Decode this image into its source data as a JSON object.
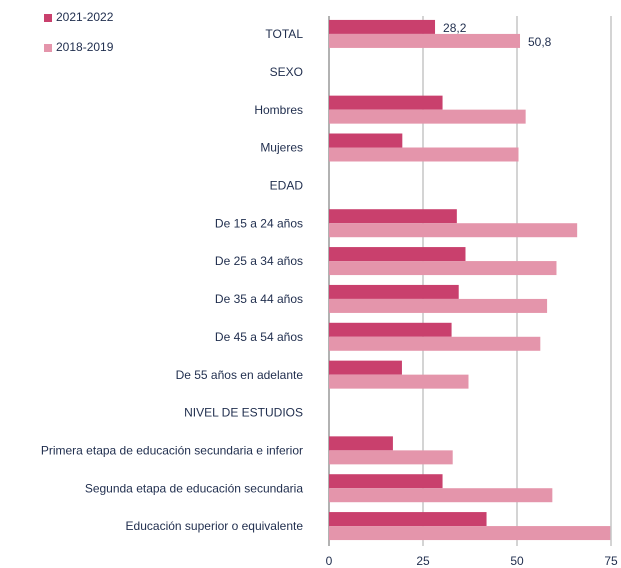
{
  "chart_data": {
    "type": "bar",
    "orientation": "horizontal",
    "categories": [
      "TOTAL",
      "SEXO",
      "Hombres",
      "Mujeres",
      "EDAD",
      "De 15 a 24 años",
      "De 25 a 34 años",
      "De 35 a 44 años",
      "De 45 a 54 años",
      "De 55 años en adelante",
      "NIVEL DE ESTUDIOS",
      "Primera etapa de educación secundaria e inferior",
      "Segunda etapa de educación secundaria",
      "Educación superior o equivalente"
    ],
    "series": [
      {
        "name": "2021-2022",
        "color": "#c9406d",
        "values": [
          28.2,
          null,
          30.2,
          19.5,
          null,
          34,
          36.3,
          34.5,
          32.6,
          19.4,
          null,
          17,
          30.2,
          41.9
        ],
        "value_labels": [
          "28,2",
          null,
          null,
          null,
          null,
          null,
          null,
          null,
          null,
          null,
          null,
          null,
          null,
          null
        ]
      },
      {
        "name": "2018-2019",
        "color": "#e495ab",
        "values": [
          50.8,
          null,
          52.3,
          50.4,
          null,
          66,
          60.5,
          58,
          56.2,
          37.1,
          null,
          32.9,
          59.4,
          74.8
        ],
        "value_labels": [
          "50,8",
          null,
          null,
          null,
          null,
          null,
          null,
          null,
          null,
          null,
          null,
          null,
          null,
          null
        ]
      }
    ],
    "xlim": [
      0,
      75
    ],
    "xticks": [
      0,
      25,
      50,
      75
    ],
    "grid": true,
    "legend": "top-left"
  }
}
